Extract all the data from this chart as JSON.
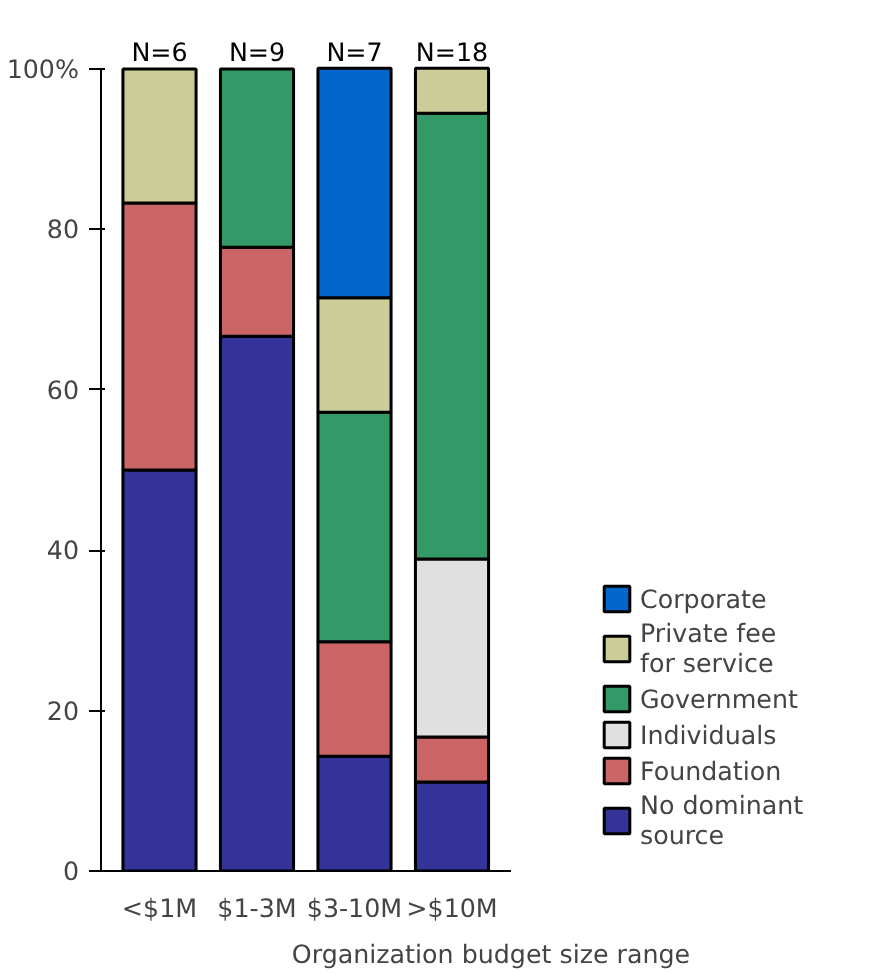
{
  "chart_data": {
    "type": "bar",
    "stacked": true,
    "xlabel": "Organization budget size range",
    "categories": [
      "<$1M",
      "$1-3M",
      "$3-10M",
      ">$10M"
    ],
    "series": [
      {
        "name": "No dominant source",
        "color": "#333399",
        "values": [
          50,
          66.7,
          14.3,
          11.1
        ]
      },
      {
        "name": "Foundation",
        "color": "#cc6666",
        "values": [
          33.3,
          11.1,
          14.3,
          5.6
        ]
      },
      {
        "name": "Individuals",
        "color": "#e0e0e0",
        "values": [
          null,
          null,
          null,
          22.2
        ]
      },
      {
        "name": "Government",
        "color": "#339966",
        "values": [
          null,
          22.2,
          28.6,
          55.6
        ]
      },
      {
        "name": "Private fee for service",
        "color": "#cccc99",
        "values": [
          16.7,
          null,
          14.3,
          5.6
        ]
      },
      {
        "name": "Corporate",
        "color": "#0066cc",
        "values": [
          null,
          null,
          28.6,
          null
        ]
      }
    ],
    "ylim": [
      0,
      100
    ],
    "yticks": [
      0,
      20,
      40,
      60,
      80,
      {
        "value": 100,
        "label": "100%"
      }
    ],
    "grid": false,
    "legend": "right",
    "annotations": [
      {
        "text": "N=6",
        "x": "<$1M",
        "y": 100
      },
      {
        "text": "N=9",
        "x": "$1-3M",
        "y": 100
      },
      {
        "text": "N=7",
        "x": "$3-10M",
        "y": 100
      },
      {
        "text": "N=18",
        "x": ">$10M",
        "y": 100
      }
    ]
  }
}
